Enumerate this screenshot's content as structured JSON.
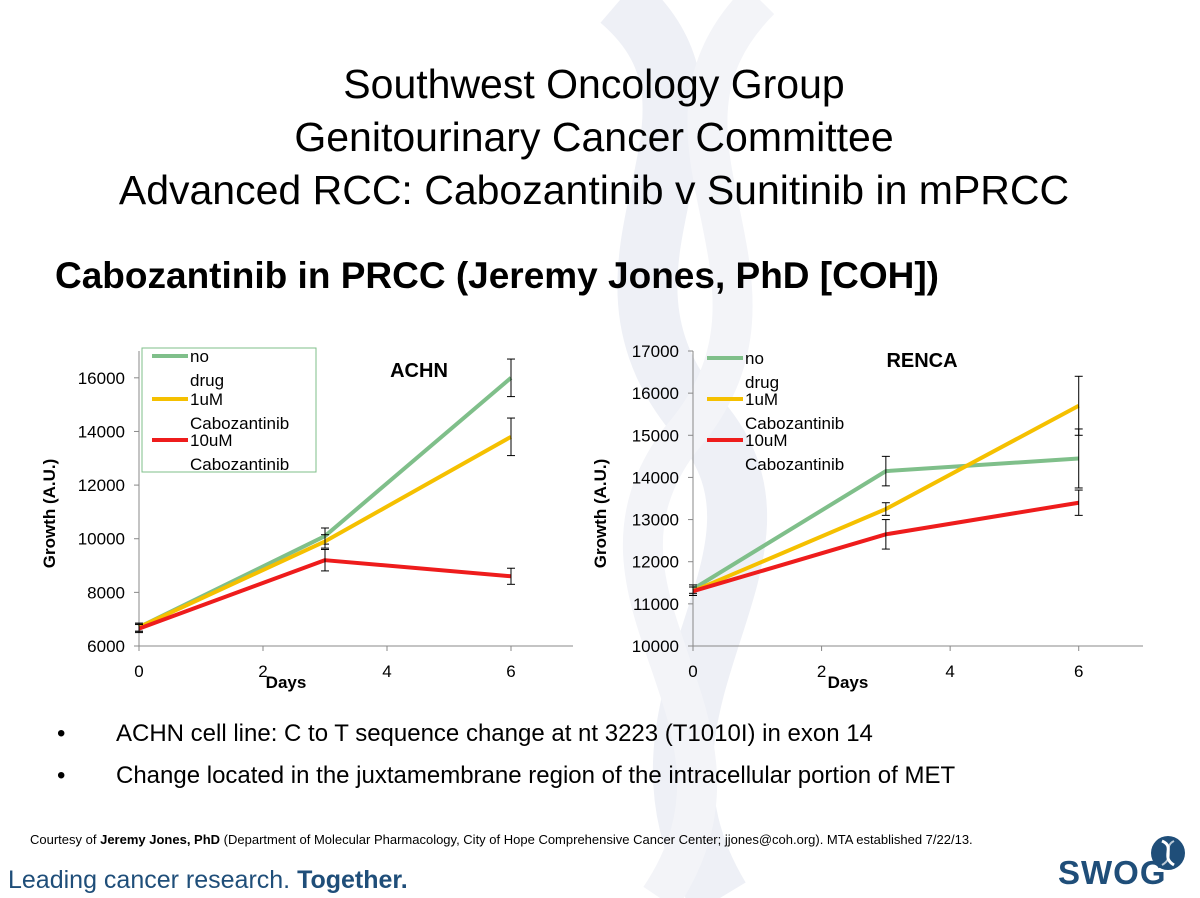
{
  "header": {
    "title_lines": [
      "Southwest Oncology Group",
      "Genitourinary Cancer Committee",
      "Advanced RCC: Cabozantinib v Sunitinib in mPRCC"
    ],
    "subtitle": "Cabozantinib in PRCC (Jeremy Jones, PhD [COH])"
  },
  "chart_data": [
    {
      "type": "line",
      "title": "ACHN",
      "xlabel": "Days",
      "ylabel": "Growth (A.U.)",
      "xlim": [
        0,
        7
      ],
      "ylim": [
        6000,
        17000
      ],
      "x_ticks": [
        0,
        2,
        4,
        6
      ],
      "y_ticks": [
        6000,
        8000,
        10000,
        12000,
        14000,
        16000
      ],
      "x": [
        0,
        3,
        6
      ],
      "legend_position": "top-left",
      "legend_border": true,
      "series": [
        {
          "name": "no drug",
          "color": "#7fbf8a",
          "values": [
            6700,
            10100,
            16000
          ],
          "errors": [
            150,
            300,
            700
          ]
        },
        {
          "name": "1uM Cabozantinib",
          "color": "#f5c000",
          "values": [
            6700,
            9900,
            13800
          ],
          "errors": [
            150,
            250,
            700
          ]
        },
        {
          "name": "10uM Cabozantinib",
          "color": "#ee1c1c",
          "values": [
            6650,
            9200,
            8600
          ],
          "errors": [
            150,
            400,
            300
          ]
        }
      ]
    },
    {
      "type": "line",
      "title": "RENCA",
      "xlabel": "Days",
      "ylabel": "Growth (A.U.)",
      "xlim": [
        0,
        7
      ],
      "ylim": [
        10000,
        17000
      ],
      "x_ticks": [
        0,
        2,
        4,
        6
      ],
      "y_ticks": [
        10000,
        11000,
        12000,
        13000,
        14000,
        15000,
        16000,
        17000
      ],
      "x": [
        0,
        3,
        6
      ],
      "legend_position": "top-left",
      "legend_border": false,
      "series": [
        {
          "name": "no drug",
          "color": "#7fbf8a",
          "values": [
            11350,
            14150,
            14450
          ],
          "errors": [
            100,
            350,
            700
          ]
        },
        {
          "name": "1uM Cabozantinib",
          "color": "#f5c000",
          "values": [
            11300,
            13250,
            15700
          ],
          "errors": [
            100,
            150,
            700
          ]
        },
        {
          "name": "10uM Cabozantinib",
          "color": "#ee1c1c",
          "values": [
            11300,
            12650,
            13400
          ],
          "errors": [
            100,
            350,
            300
          ]
        }
      ]
    }
  ],
  "bullets": [
    "ACHN cell line: C to T sequence change at nt 3223 (T1010I) in exon 14",
    "Change located in the juxtamembrane region of the intracellular portion of MET"
  ],
  "bullet_glyph": "•",
  "footer": {
    "credit_prefix": "Courtesy of ",
    "credit_name": "Jeremy Jones, PhD",
    "credit_rest": " (Department of Molecular Pharmacology, City of Hope Comprehensive Cancer Center; jjones@coh.org). MTA established 7/22/13.",
    "tagline_main": "Leading cancer research. ",
    "tagline_bold": "Together.",
    "logo_text": "SWOG",
    "brand_color": "#1f4e79"
  }
}
